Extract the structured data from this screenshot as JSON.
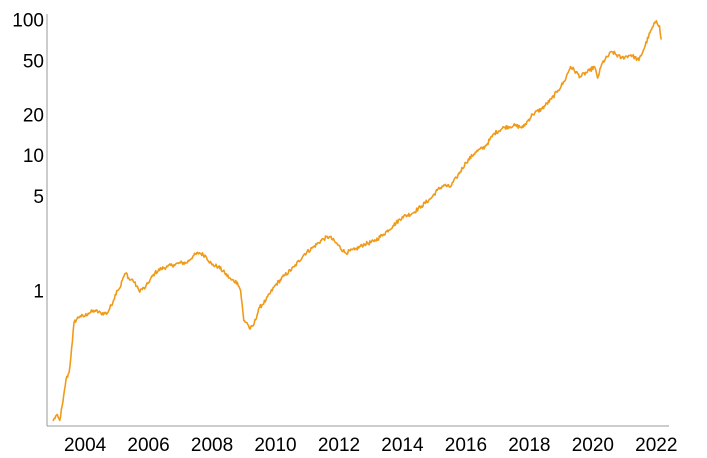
{
  "colors": {
    "series": "#f09a1a",
    "axis": "#999999",
    "text": "#000000"
  },
  "chart_data": {
    "type": "line",
    "title": "",
    "xlabel": "",
    "ylabel": "",
    "yscale": "log",
    "grid": false,
    "legend": "none",
    "xlim": [
      2002.8,
      2022.4
    ],
    "ylim": [
      0.1,
      110
    ],
    "x_ticks": [
      2004,
      2006,
      2008,
      2010,
      2012,
      2014,
      2016,
      2018,
      2020,
      2022
    ],
    "x_tick_labels": [
      "2004",
      "2006",
      "2008",
      "2010",
      "2012",
      "2014",
      "2016",
      "2018",
      "2020",
      "2022"
    ],
    "y_ticks": [
      1,
      5,
      10,
      20,
      50,
      100
    ],
    "y_tick_labels": [
      "1",
      "5",
      "10",
      "20",
      "50",
      "100"
    ],
    "series": [
      {
        "name": "",
        "x": [
          2003.0,
          2003.1,
          2003.2,
          2003.3,
          2003.4,
          2003.5,
          2003.6,
          2003.65,
          2003.75,
          2003.85,
          2003.95,
          2004.1,
          2004.3,
          2004.5,
          2004.7,
          2004.9,
          2005.0,
          2005.1,
          2005.2,
          2005.3,
          2005.4,
          2005.5,
          2005.7,
          2005.9,
          2006.0,
          2006.2,
          2006.4,
          2006.6,
          2006.8,
          2007.0,
          2007.2,
          2007.4,
          2007.6,
          2007.8,
          2008.0,
          2008.2,
          2008.4,
          2008.6,
          2008.8,
          2008.9,
          2009.0,
          2009.1,
          2009.2,
          2009.3,
          2009.5,
          2009.7,
          2010.0,
          2010.3,
          2010.6,
          2010.9,
          2011.2,
          2011.5,
          2011.7,
          2011.9,
          2012.2,
          2012.5,
          2012.8,
          2013.1,
          2013.4,
          2013.7,
          2014.0,
          2014.3,
          2014.6,
          2014.9,
          2015.1,
          2015.3,
          2015.5,
          2015.7,
          2016.0,
          2016.3,
          2016.6,
          2016.9,
          2017.2,
          2017.5,
          2017.8,
          2018.1,
          2018.4,
          2018.7,
          2018.9,
          2019.1,
          2019.3,
          2019.6,
          2019.9,
          2020.05,
          2020.15,
          2020.3,
          2020.6,
          2020.9,
          2021.2,
          2021.45,
          2021.6,
          2021.8,
          2022.0,
          2022.1,
          2022.15
        ],
        "y": [
          0.11,
          0.12,
          0.11,
          0.15,
          0.22,
          0.25,
          0.42,
          0.58,
          0.62,
          0.65,
          0.64,
          0.68,
          0.71,
          0.68,
          0.68,
          0.85,
          1.0,
          1.05,
          1.25,
          1.35,
          1.2,
          1.2,
          1.0,
          1.05,
          1.15,
          1.35,
          1.45,
          1.5,
          1.55,
          1.6,
          1.6,
          1.8,
          1.9,
          1.8,
          1.55,
          1.5,
          1.35,
          1.2,
          1.15,
          1.0,
          0.6,
          0.58,
          0.52,
          0.55,
          0.75,
          0.85,
          1.1,
          1.3,
          1.5,
          1.85,
          2.1,
          2.4,
          2.5,
          2.25,
          1.9,
          2.0,
          2.2,
          2.3,
          2.6,
          3.0,
          3.5,
          3.7,
          4.2,
          4.8,
          5.5,
          6.0,
          5.8,
          6.8,
          8.8,
          10.5,
          11.5,
          14.5,
          16.0,
          16.5,
          16.0,
          20.0,
          22.0,
          26.0,
          30.0,
          35.0,
          45.0,
          38.0,
          42.0,
          45.0,
          37.0,
          48.0,
          58.0,
          52.0,
          55.0,
          50.0,
          60.0,
          80.0,
          98.0,
          90.0,
          72.0
        ]
      }
    ]
  }
}
